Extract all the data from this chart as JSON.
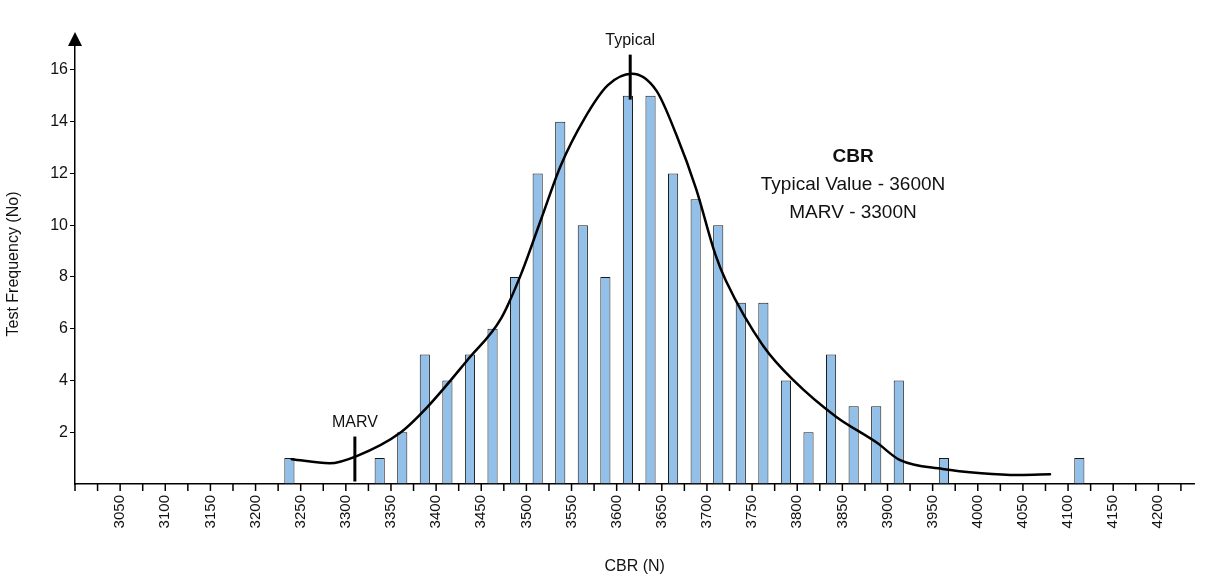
{
  "chart_data": {
    "type": "histogram",
    "xlabel": "CBR (N)",
    "ylabel": "Test Frequency (No)",
    "bins": [
      3225,
      3250,
      3275,
      3300,
      3325,
      3350,
      3375,
      3400,
      3425,
      3450,
      3475,
      3500,
      3525,
      3550,
      3575,
      3600,
      3625,
      3650,
      3675,
      3700,
      3725,
      3750,
      3775,
      3800,
      3825,
      3850,
      3875,
      3900,
      3925,
      3950,
      3975,
      4000,
      4025,
      4050,
      4075,
      4100,
      4125
    ],
    "values": [
      1,
      0,
      0,
      0,
      1,
      2,
      5,
      4,
      5,
      6,
      8,
      12,
      14,
      10,
      8,
      15,
      15,
      12,
      11,
      10,
      7,
      7,
      4,
      2,
      5,
      3,
      3,
      4,
      0,
      1,
      0,
      0,
      0,
      0,
      0,
      1
    ],
    "color": "#92c0e8",
    "series": [
      {
        "type": "line",
        "color": "#000000",
        "x": [
          3240,
          3282,
          3312,
          3361,
          3391,
          3435,
          3472,
          3494,
          3516,
          3538,
          3564,
          3590,
          3617,
          3644,
          3666,
          3688,
          3709,
          3721,
          3763,
          3796,
          3843,
          3888,
          3914,
          3961,
          4004,
          4046,
          4080
        ],
        "values": [
          0.96,
          0.8,
          1.08,
          2.0,
          3.0,
          4.8,
          6.4,
          8.1,
          10.2,
          12.3,
          14.1,
          15.4,
          15.85,
          15.2,
          13.5,
          11.4,
          8.9,
          7.85,
          5.3,
          4.0,
          2.6,
          1.6,
          0.92,
          0.58,
          0.42,
          0.35,
          0.38
        ]
      }
    ],
    "marker": "none",
    "line_style": "solid",
    "xlim": [
      3000,
      4240
    ],
    "xticks": [
      {
        "value": 3000,
        "label": null
      },
      {
        "value": 3025,
        "label": null
      },
      3050,
      {
        "value": 3075,
        "label": null
      },
      3100,
      {
        "value": 3125,
        "label": null
      },
      3150,
      {
        "value": 3175,
        "label": null
      },
      3200,
      {
        "value": 3225,
        "label": null
      },
      3250,
      {
        "value": 3275,
        "label": null
      },
      3300,
      {
        "value": 3325,
        "label": null
      },
      3350,
      {
        "value": 3375,
        "label": null
      },
      3400,
      {
        "value": 3425,
        "label": null
      },
      3450,
      {
        "value": 3475,
        "label": null
      },
      3500,
      {
        "value": 3525,
        "label": null
      },
      3550,
      {
        "value": 3575,
        "label": null
      },
      3600,
      {
        "value": 3625,
        "label": null
      },
      3650,
      {
        "value": 3675,
        "label": null
      },
      3700,
      {
        "value": 3725,
        "label": null
      },
      3750,
      {
        "value": 3775,
        "label": null
      },
      3800,
      {
        "value": 3825,
        "label": null
      },
      3850,
      {
        "value": 3875,
        "label": null
      },
      3900,
      {
        "value": 3925,
        "label": null
      },
      3950,
      {
        "value": 3975,
        "label": null
      },
      4000,
      {
        "value": 4025,
        "label": null
      },
      4050,
      {
        "value": 4075,
        "label": null
      },
      4100,
      {
        "value": 4125,
        "label": null
      },
      4150,
      {
        "value": 4175,
        "label": null
      },
      4200,
      {
        "value": 4225,
        "label": null
      }
    ],
    "ylim": [
      0,
      17
    ],
    "yticks": [
      2,
      4,
      6,
      8,
      10,
      12,
      14,
      16
    ],
    "ref_lines": [
      {
        "axis": "x",
        "value": 3615,
        "label": "Typical",
        "color": "#000000"
      },
      {
        "axis": "x",
        "value": 3310,
        "label": "MARV",
        "color": "#000000"
      }
    ],
    "annotations": [
      "CBR",
      "Typical Value - 3600N",
      "MARV - 3300N"
    ],
    "legend": false
  }
}
